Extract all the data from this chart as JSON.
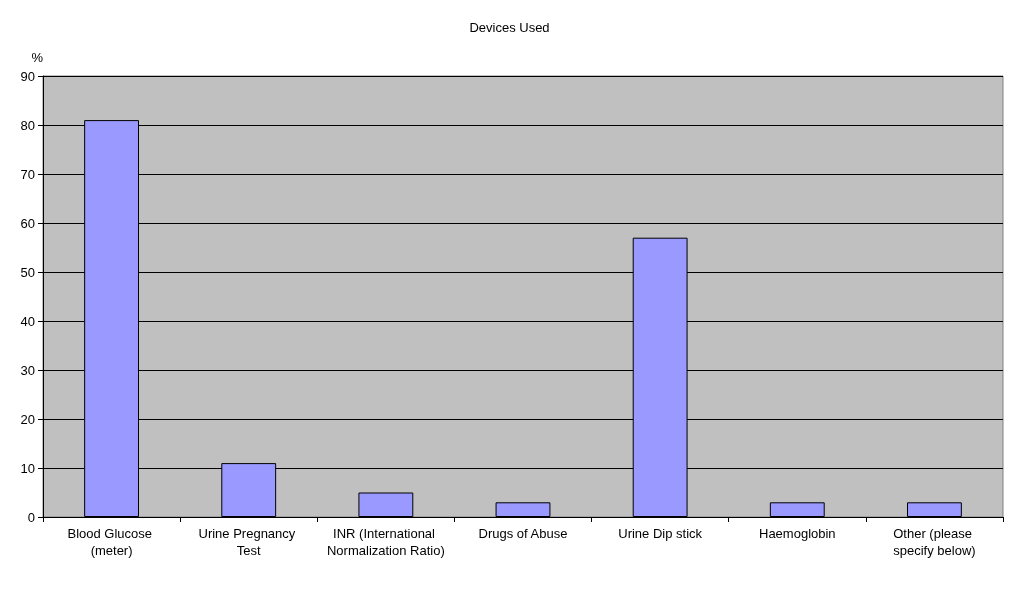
{
  "chart_data": {
    "type": "bar",
    "title": "Devices Used",
    "ylabel": "%",
    "categories": [
      "Blood Glucose (meter)",
      "Urine Pregnancy Test",
      "INR (International Normalization Ratio)",
      "Drugs of Abuse",
      "Urine Dip stick",
      "Haemoglobin",
      "Other (please specify below)"
    ],
    "values": [
      81,
      11,
      5,
      3,
      57,
      3,
      3
    ],
    "color": "#9999ff",
    "ylim": [
      0,
      90
    ],
    "yticks": [
      0,
      10,
      20,
      30,
      40,
      50,
      60,
      70,
      80,
      90
    ],
    "grid": "y"
  }
}
